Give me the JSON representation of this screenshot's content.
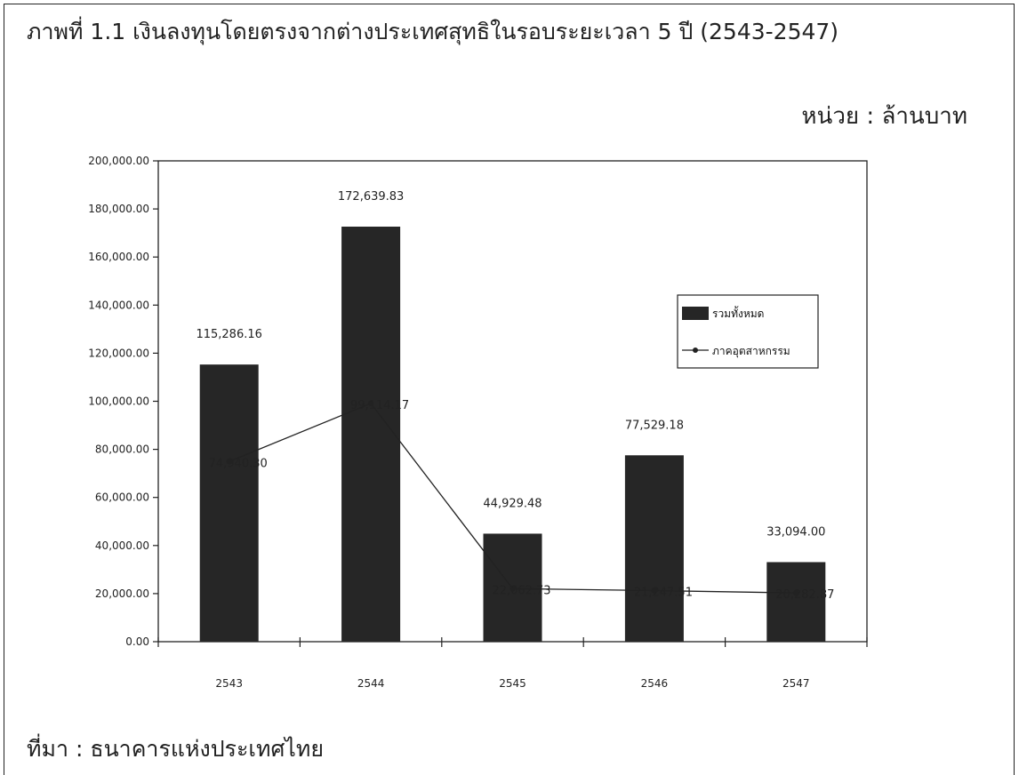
{
  "page": {
    "title": "ภาพที่ 1.1 เงินลงทุนโดยตรงจากต่างประเทศสุทธิในรอบระยะเวลา 5 ปี (2543-2547)",
    "unit": "หน่วย : ล้านบาท",
    "source": "ที่มา : ธนาคารแห่งประเทศไทย"
  },
  "chart_data": {
    "type": "bar",
    "categories": [
      "2543",
      "2544",
      "2545",
      "2546",
      "2547"
    ],
    "ylim": [
      0,
      200000
    ],
    "yticks": [
      0,
      20000,
      40000,
      60000,
      80000,
      100000,
      120000,
      140000,
      160000,
      180000,
      200000
    ],
    "ytick_labels": [
      "0.00",
      "20,000.00",
      "40,000.00",
      "60,000.00",
      "80,000.00",
      "100,000.00",
      "120,000.00",
      "140,000.00",
      "160,000.00",
      "180,000.00",
      "200,000.00"
    ],
    "series": [
      {
        "name": "รวมทั้งหมด",
        "kind": "bar",
        "color": "#262626",
        "values": [
          115286.16,
          172639.83,
          44929.48,
          77529.18,
          33094.0
        ],
        "labels": [
          "115,286.16",
          "172,639.83",
          "44,929.48",
          "77,529.18",
          "33,094.00"
        ]
      },
      {
        "name": "ภาคอุตสาหกรรม",
        "kind": "line",
        "color": "#222222",
        "values": [
          74940.3,
          99114.17,
          22062.73,
          21247.51,
          20282.87
        ],
        "labels": [
          "74,940.30",
          "99,114.17",
          "22,062.73",
          "21,247.51",
          "20,282.87"
        ]
      }
    ],
    "legend_position": "right",
    "grid": false
  }
}
